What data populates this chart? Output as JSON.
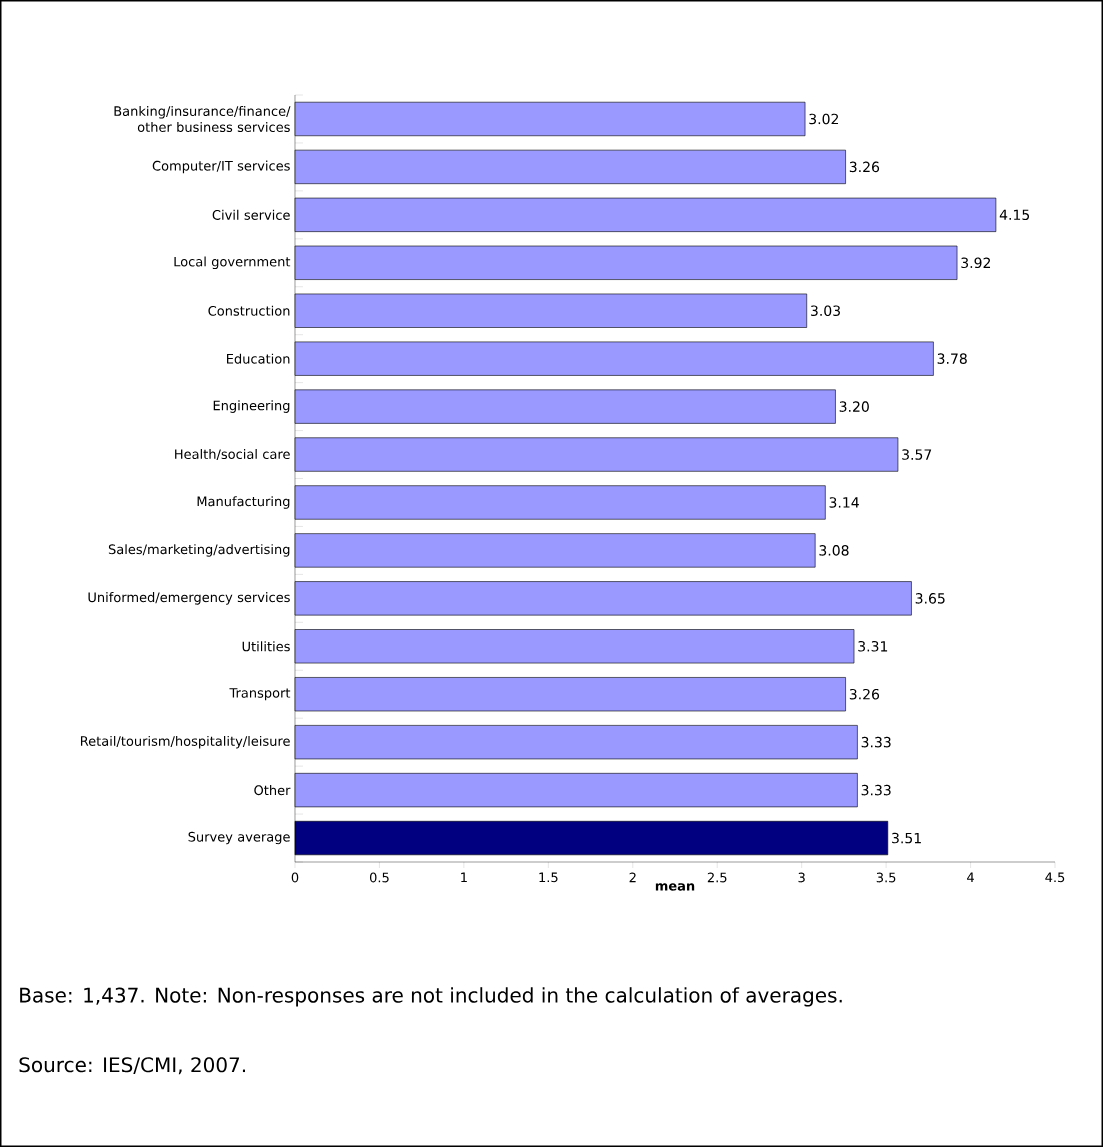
{
  "chart_data": {
    "type": "bar",
    "orientation": "horizontal",
    "categories": [
      "Banking/insurance/finance/ other business services",
      "Computer/IT services",
      "Civil service",
      "Local government",
      "Construction",
      "Education",
      "Engineering",
      "Health/social care",
      "Manufacturing",
      "Sales/marketing/advertising",
      "Uniformed/emergency services",
      "Utilities",
      "Transport",
      "Retail/tourism/hospitality/leisure",
      "Other",
      "Survey average"
    ],
    "values": [
      3.02,
      3.26,
      4.15,
      3.92,
      3.03,
      3.78,
      3.2,
      3.57,
      3.14,
      3.08,
      3.65,
      3.31,
      3.26,
      3.33,
      3.33,
      3.51
    ],
    "value_labels": [
      "3.02",
      "3.26",
      "4.15",
      "3.92",
      "3.03",
      "3.78",
      "3.20",
      "3.57",
      "3.14",
      "3.08",
      "3.65",
      "3.31",
      "3.26",
      "3.33",
      "3.33",
      "3.51"
    ],
    "colors": [
      "#9999ff",
      "#9999ff",
      "#9999ff",
      "#9999ff",
      "#9999ff",
      "#9999ff",
      "#9999ff",
      "#9999ff",
      "#9999ff",
      "#9999ff",
      "#9999ff",
      "#9999ff",
      "#9999ff",
      "#9999ff",
      "#9999ff",
      "#000080"
    ],
    "xlim": [
      0,
      4.5
    ],
    "xticks": [
      0,
      0.5,
      1,
      1.5,
      2,
      2.5,
      3,
      3.5,
      4,
      4.5
    ],
    "xlabel": "mean",
    "annotations": [
      "Base: 1,437. Note: Non-responses are not included in the calculation of averages.",
      "Source: IES/CMI, 2007."
    ]
  }
}
